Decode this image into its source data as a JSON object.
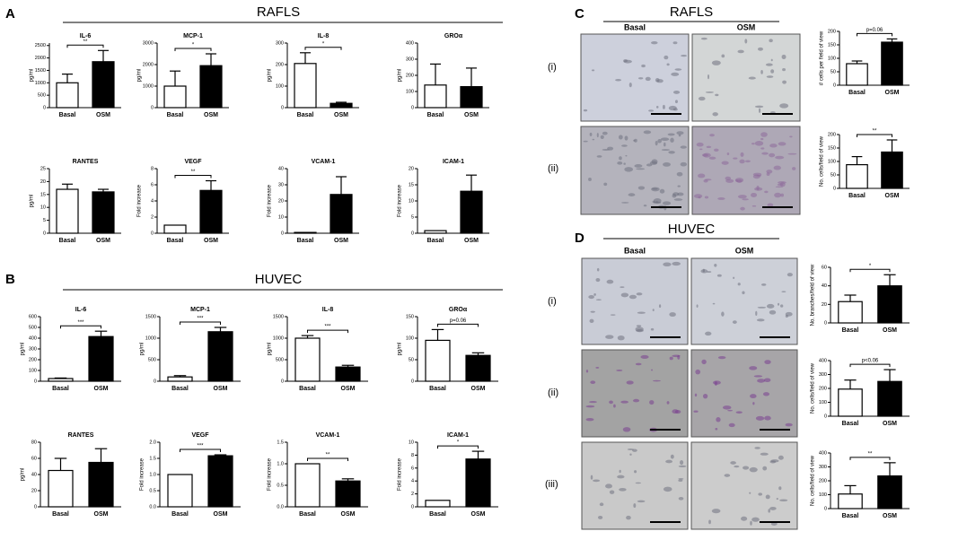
{
  "panels": [
    "A",
    "B",
    "C",
    "D"
  ],
  "headers": {
    "a": "RAFLS",
    "b": "HUVEC",
    "c": "RAFLS",
    "d": "HUVEC"
  },
  "column_headers": {
    "c": [
      "Basal",
      "OSM"
    ],
    "d": [
      "Basal",
      "OSM"
    ]
  },
  "row_labels": {
    "c": [
      "(i)",
      "(ii)"
    ],
    "d": [
      "(i)",
      "(ii)",
      "(iii)"
    ]
  },
  "bar_colors": [
    "#ffffff",
    "#000000"
  ],
  "chart_data": [
    {
      "type": "bar",
      "title": "IL-6",
      "y_label": "pg/ml",
      "categories": [
        "Basal",
        "OSM"
      ],
      "values": [
        1000,
        1850
      ],
      "errors": [
        350,
        450
      ],
      "ylim": [
        0,
        2600
      ],
      "yticks": [
        0,
        500,
        1000,
        1500,
        2000,
        2500
      ],
      "significance": "**"
    },
    {
      "type": "bar",
      "title": "MCP-1",
      "y_label": "pg/ml",
      "categories": [
        "Basal",
        "OSM"
      ],
      "values": [
        1000,
        1950
      ],
      "errors": [
        700,
        550
      ],
      "ylim": [
        0,
        3000
      ],
      "yticks": [
        0,
        1000,
        2000,
        3000
      ],
      "significance": "*"
    },
    {
      "type": "bar",
      "title": "IL-8",
      "y_label": "pg/ml",
      "categories": [
        "Basal",
        "OSM"
      ],
      "values": [
        205,
        20
      ],
      "errors": [
        50,
        5
      ],
      "ylim": [
        0,
        300
      ],
      "yticks": [
        0,
        100,
        200,
        300
      ],
      "significance": "*"
    },
    {
      "type": "bar",
      "title": "GROα",
      "y_label": "pg/ml",
      "categories": [
        "Basal",
        "OSM"
      ],
      "values": [
        140,
        130
      ],
      "errors": [
        130,
        115
      ],
      "ylim": [
        0,
        400
      ],
      "yticks": [
        0,
        100,
        200,
        300,
        400
      ]
    },
    {
      "type": "bar",
      "title": "RANTES",
      "y_label": "pg/ml",
      "categories": [
        "Basal",
        "OSM"
      ],
      "values": [
        17,
        16
      ],
      "errors": [
        2,
        1
      ],
      "ylim": [
        0,
        25
      ],
      "yticks": [
        0,
        5,
        10,
        15,
        20,
        25
      ]
    },
    {
      "type": "bar",
      "title": "VEGF",
      "y_label": "Fold increase",
      "categories": [
        "Basal",
        "OSM"
      ],
      "values": [
        1,
        5.3
      ],
      "errors": [
        0,
        1.2
      ],
      "ylim": [
        0,
        8
      ],
      "yticks": [
        0,
        2,
        4,
        6,
        8
      ],
      "significance": "**"
    },
    {
      "type": "bar",
      "title": "VCAM-1",
      "y_label": "Fold increase",
      "categories": [
        "Basal",
        "OSM"
      ],
      "values": [
        0.5,
        24
      ],
      "errors": [
        0,
        11
      ],
      "ylim": [
        0,
        40
      ],
      "yticks": [
        0,
        10,
        20,
        30,
        40
      ]
    },
    {
      "type": "bar",
      "title": "ICAM-1",
      "y_label": "Fold increase",
      "categories": [
        "Basal",
        "OSM"
      ],
      "values": [
        0.8,
        13
      ],
      "errors": [
        0,
        5
      ],
      "ylim": [
        0,
        20
      ],
      "yticks": [
        0,
        5,
        10,
        15,
        20
      ]
    },
    {
      "type": "bar",
      "title": "IL-6",
      "y_label": "pg/ml",
      "categories": [
        "Basal",
        "OSM"
      ],
      "values": [
        25,
        415
      ],
      "errors": [
        5,
        50
      ],
      "ylim": [
        0,
        600
      ],
      "yticks": [
        0,
        100,
        200,
        300,
        400,
        500,
        600
      ],
      "significance": "***"
    },
    {
      "type": "bar",
      "title": "MCP-1",
      "y_label": "pg/ml",
      "categories": [
        "Basal",
        "OSM"
      ],
      "values": [
        100,
        1150
      ],
      "errors": [
        30,
        100
      ],
      "ylim": [
        0,
        1500
      ],
      "yticks": [
        0,
        500,
        1000,
        1500
      ],
      "significance": "***"
    },
    {
      "type": "bar",
      "title": "IL-8",
      "y_label": "pg/ml",
      "categories": [
        "Basal",
        "OSM"
      ],
      "values": [
        1000,
        330
      ],
      "errors": [
        60,
        40
      ],
      "ylim": [
        0,
        1500
      ],
      "yticks": [
        0,
        500,
        1000,
        1500
      ],
      "significance": "***"
    },
    {
      "type": "bar",
      "title": "GROα",
      "y_label": "pg/ml",
      "categories": [
        "Basal",
        "OSM"
      ],
      "values": [
        95,
        60
      ],
      "errors": [
        25,
        6
      ],
      "ylim": [
        0,
        150
      ],
      "yticks": [
        0,
        50,
        100,
        150
      ],
      "significance": "p=0.06"
    },
    {
      "type": "bar",
      "title": "RANTES",
      "y_label": "pg/ml",
      "categories": [
        "Basal",
        "OSM"
      ],
      "values": [
        45,
        55
      ],
      "errors": [
        15,
        17
      ],
      "ylim": [
        0,
        80
      ],
      "yticks": [
        0,
        20,
        40,
        60,
        80
      ]
    },
    {
      "type": "bar",
      "title": "VEGF",
      "y_label": "Fold increase",
      "categories": [
        "Basal",
        "OSM"
      ],
      "values": [
        1.0,
        1.58
      ],
      "errors": [
        0,
        0.03
      ],
      "ylim": [
        0,
        2
      ],
      "yticks": [
        {
          "value": 0,
          "label": "0.0"
        },
        0.5,
        {
          "value": 1,
          "label": "1.0"
        },
        1.5,
        {
          "value": 2,
          "label": "2.0"
        }
      ],
      "significance": "***"
    },
    {
      "type": "bar",
      "title": "VCAM-1",
      "y_label": "Fold increase",
      "categories": [
        "Basal",
        "OSM"
      ],
      "values": [
        1.0,
        0.6
      ],
      "errors": [
        0,
        0.05
      ],
      "ylim": [
        0,
        1.5
      ],
      "yticks": [
        {
          "value": 0,
          "label": "0.0"
        },
        0.5,
        {
          "value": 1,
          "label": "1.0"
        },
        1.5
      ],
      "significance": "**"
    },
    {
      "type": "bar",
      "title": "ICAM-1",
      "y_label": "Fold increase",
      "categories": [
        "Basal",
        "OSM"
      ],
      "values": [
        1,
        7.4
      ],
      "errors": [
        0,
        1.2
      ],
      "ylim": [
        0,
        10
      ],
      "yticks": [
        0,
        2,
        4,
        6,
        8,
        10
      ],
      "significance": "*"
    },
    {
      "type": "bar",
      "y_label": "# cells per field of view",
      "categories": [
        "Basal",
        "OSM"
      ],
      "values": [
        80,
        160
      ],
      "errors": [
        10,
        12
      ],
      "ylim": [
        0,
        200
      ],
      "yticks": [
        0,
        50,
        100,
        150,
        200
      ],
      "significance": "p=0.06"
    },
    {
      "type": "bar",
      "y_label": "No. cells/field of view",
      "categories": [
        "Basal",
        "OSM"
      ],
      "values": [
        88,
        135
      ],
      "errors": [
        30,
        45
      ],
      "ylim": [
        0,
        200
      ],
      "yticks": [
        0,
        50,
        100,
        150,
        200
      ],
      "significance": "**"
    },
    {
      "type": "bar",
      "y_label": "No. branches/field of view",
      "categories": [
        "Basal",
        "OSM"
      ],
      "values": [
        23,
        40
      ],
      "errors": [
        7,
        12
      ],
      "ylim": [
        0,
        60
      ],
      "yticks": [
        0,
        20,
        40,
        60
      ],
      "significance": "*"
    },
    {
      "type": "bar",
      "y_label": "No. cells/field of view",
      "categories": [
        "Basal",
        "OSM"
      ],
      "values": [
        195,
        250
      ],
      "errors": [
        65,
        85
      ],
      "ylim": [
        0,
        400
      ],
      "yticks": [
        0,
        100,
        200,
        300,
        400
      ],
      "significance": "p<0.06"
    },
    {
      "type": "bar",
      "y_label": "No. cells/field of view",
      "categories": [
        "Basal",
        "OSM"
      ],
      "values": [
        105,
        235
      ],
      "errors": [
        60,
        95
      ],
      "ylim": [
        0,
        400
      ],
      "yticks": [
        0,
        100,
        200,
        300,
        400
      ],
      "significance": "**"
    }
  ]
}
